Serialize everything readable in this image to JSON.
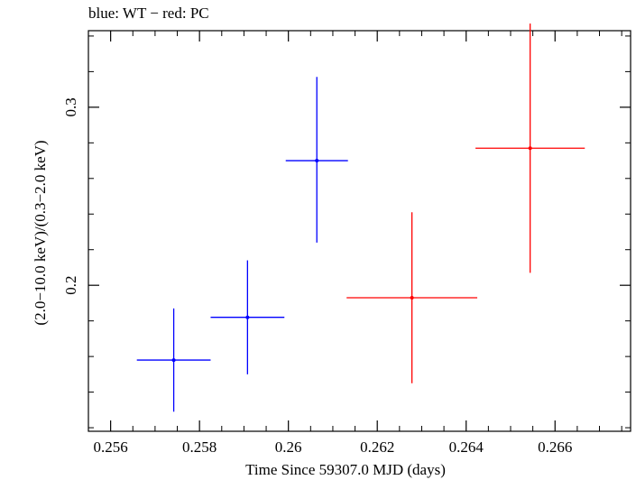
{
  "chart_data": {
    "type": "scatter",
    "title": "blue: WT − red: PC",
    "xlabel": "Time Since 59307.0 MJD (days)",
    "ylabel": "(2.0−10.0 keV)/(0.3−2.0 keV)",
    "xlim": [
      0.2555,
      0.2677
    ],
    "ylim": [
      0.118,
      0.343
    ],
    "x_ticks": [
      0.256,
      0.258,
      0.26,
      0.262,
      0.264,
      0.266
    ],
    "x_tick_labels": [
      "0.256",
      "0.258",
      "0.26",
      "0.262",
      "0.264",
      "0.266"
    ],
    "y_ticks": [
      0.2,
      0.3
    ],
    "y_tick_labels": [
      "0.2",
      "0.3"
    ],
    "grid": false,
    "series": [
      {
        "name": "WT",
        "color": "#0000ff",
        "points": [
          {
            "x": 0.25742,
            "xerr": 0.00083,
            "y": 0.158,
            "yerr_low": 0.029,
            "yerr_high": 0.029
          },
          {
            "x": 0.25908,
            "xerr": 0.00083,
            "y": 0.182,
            "yerr_low": 0.032,
            "yerr_high": 0.032
          },
          {
            "x": 0.26064,
            "xerr": 0.0007,
            "y": 0.27,
            "yerr_low": 0.046,
            "yerr_high": 0.047
          }
        ]
      },
      {
        "name": "PC",
        "color": "#ff0000",
        "points": [
          {
            "x": 0.26278,
            "xerr": 0.00147,
            "y": 0.193,
            "yerr_low": 0.048,
            "yerr_high": 0.048
          },
          {
            "x": 0.26544,
            "xerr": 0.00123,
            "y": 0.277,
            "yerr_low": 0.07,
            "yerr_high": 0.07
          }
        ]
      }
    ]
  }
}
